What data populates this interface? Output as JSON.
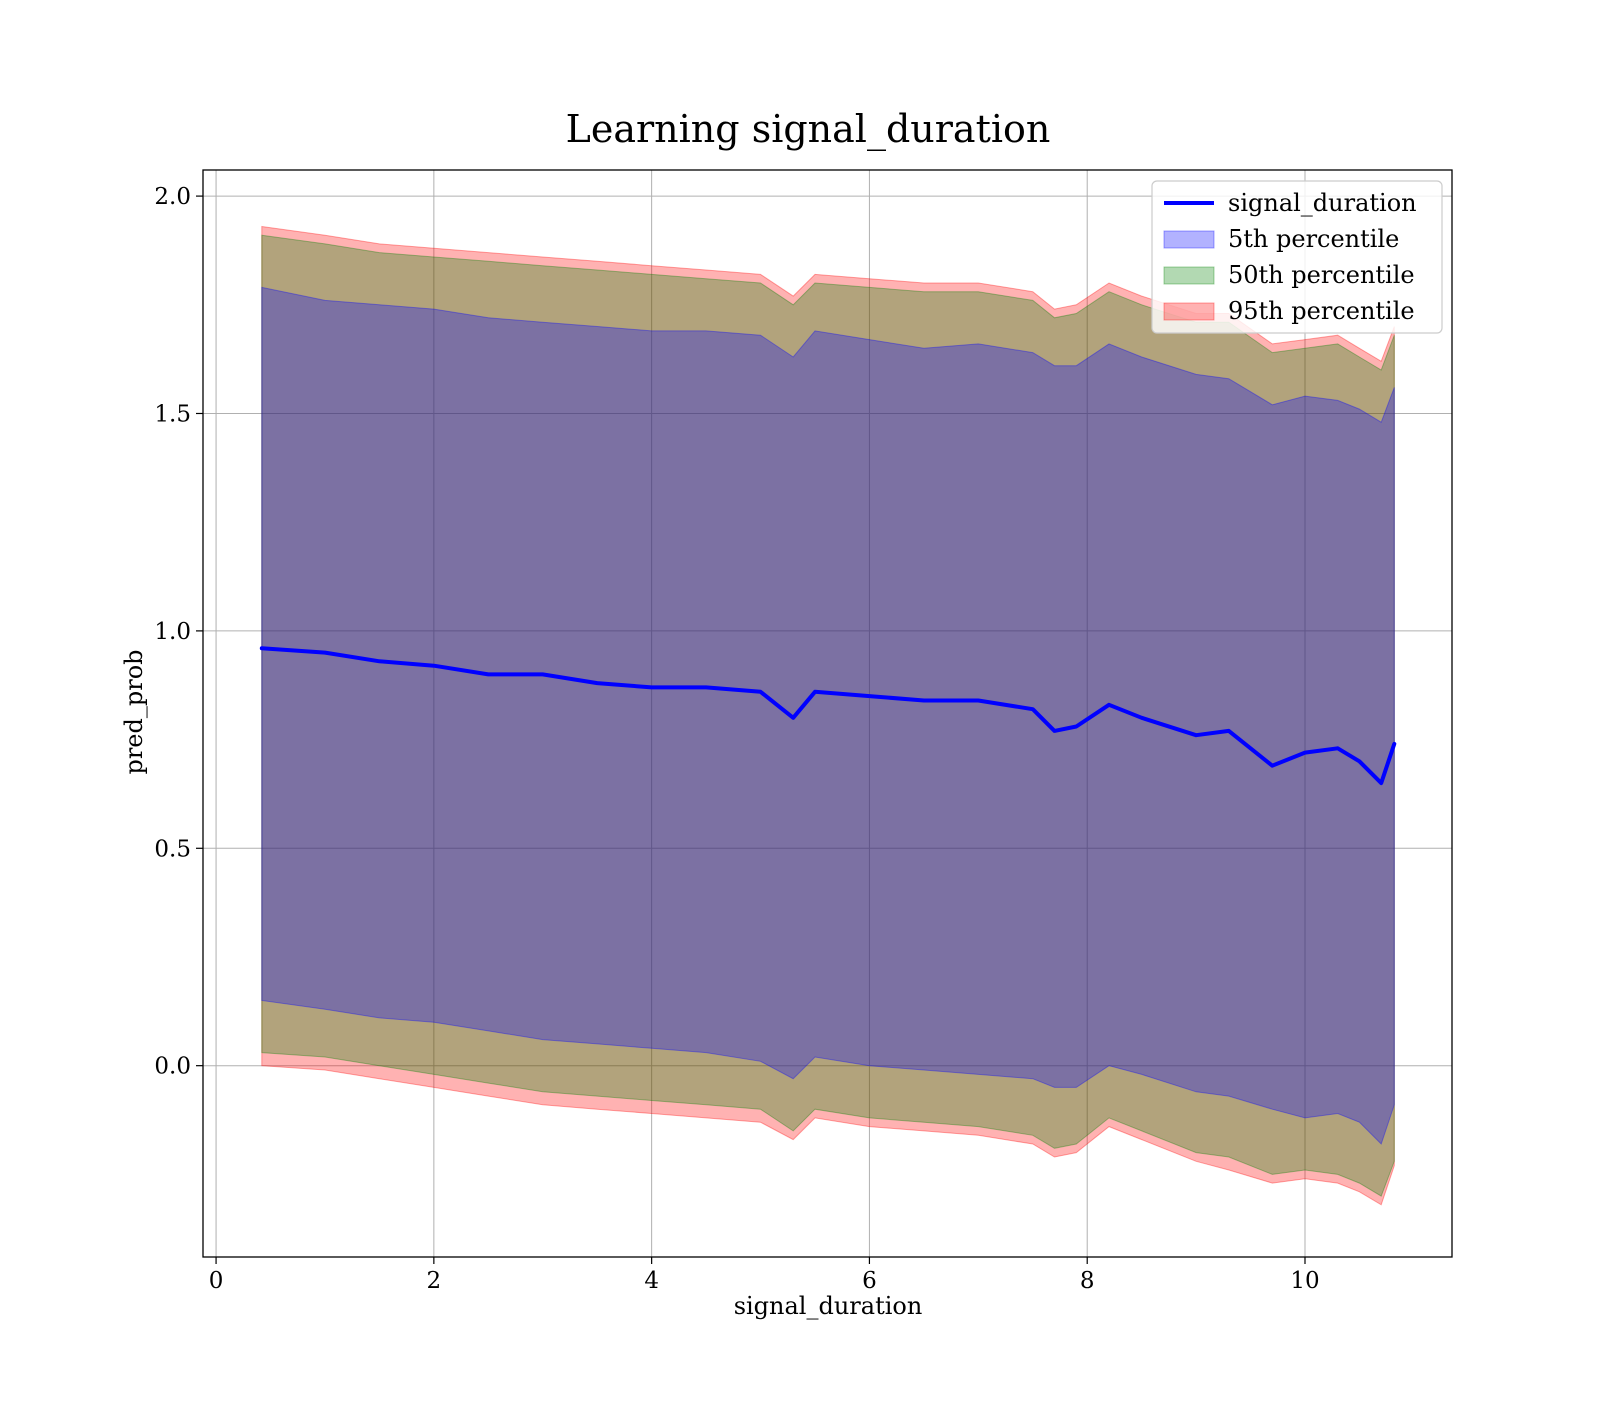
{
  "chart_data": {
    "type": "area",
    "title": "Learning signal_duration",
    "xlabel": "signal_duration",
    "ylabel": "pred_prob",
    "xlim": [
      -0.12,
      11.35
    ],
    "ylim": [
      -0.44,
      2.06
    ],
    "grid": true,
    "legend_position": "top-right",
    "x_ticks": [
      {
        "value": 0,
        "label": "0"
      },
      {
        "value": 2,
        "label": "2"
      },
      {
        "value": 4,
        "label": "4"
      },
      {
        "value": 6,
        "label": "6"
      },
      {
        "value": 8,
        "label": "8"
      },
      {
        "value": 10,
        "label": "10"
      }
    ],
    "y_ticks": [
      {
        "value": 0.0,
        "label": "0.0"
      },
      {
        "value": 0.5,
        "label": "0.5"
      },
      {
        "value": 1.0,
        "label": "1.0"
      },
      {
        "value": 1.5,
        "label": "1.5"
      },
      {
        "value": 2.0,
        "label": "2.0"
      }
    ],
    "x": [
      0.42,
      1.0,
      1.5,
      2.0,
      2.5,
      3.0,
      3.5,
      4.0,
      4.5,
      5.0,
      5.3,
      5.5,
      6.0,
      6.5,
      7.0,
      7.5,
      7.7,
      7.9,
      8.2,
      8.5,
      9.0,
      9.3,
      9.7,
      10.0,
      10.3,
      10.5,
      10.7,
      10.82
    ],
    "series": [
      {
        "name": "signal_duration",
        "kind": "line",
        "color": "#0000ff",
        "values": [
          0.96,
          0.95,
          0.93,
          0.92,
          0.9,
          0.9,
          0.88,
          0.87,
          0.87,
          0.86,
          0.8,
          0.86,
          0.85,
          0.84,
          0.84,
          0.82,
          0.77,
          0.78,
          0.83,
          0.8,
          0.76,
          0.77,
          0.69,
          0.72,
          0.73,
          0.7,
          0.65,
          0.74
        ]
      },
      {
        "name": "5th percentile",
        "kind": "band",
        "color": "#0000ff",
        "lower": [
          0.15,
          0.13,
          0.11,
          0.1,
          0.08,
          0.06,
          0.05,
          0.04,
          0.03,
          0.01,
          -0.03,
          0.02,
          0.0,
          -0.01,
          -0.02,
          -0.03,
          -0.05,
          -0.05,
          0.0,
          -0.02,
          -0.06,
          -0.07,
          -0.1,
          -0.12,
          -0.11,
          -0.13,
          -0.18,
          -0.09
        ],
        "upper": [
          1.79,
          1.76,
          1.75,
          1.74,
          1.72,
          1.71,
          1.7,
          1.69,
          1.69,
          1.68,
          1.63,
          1.69,
          1.67,
          1.65,
          1.66,
          1.64,
          1.61,
          1.61,
          1.66,
          1.63,
          1.59,
          1.58,
          1.52,
          1.54,
          1.53,
          1.51,
          1.48,
          1.56
        ]
      },
      {
        "name": "50th percentile",
        "kind": "band",
        "color": "#008000",
        "lower": [
          0.03,
          0.02,
          0.0,
          -0.02,
          -0.04,
          -0.06,
          -0.07,
          -0.08,
          -0.09,
          -0.1,
          -0.15,
          -0.1,
          -0.12,
          -0.13,
          -0.14,
          -0.16,
          -0.19,
          -0.18,
          -0.12,
          -0.15,
          -0.2,
          -0.21,
          -0.25,
          -0.24,
          -0.25,
          -0.27,
          -0.3,
          -0.22
        ],
        "upper": [
          1.91,
          1.89,
          1.87,
          1.86,
          1.85,
          1.84,
          1.83,
          1.82,
          1.81,
          1.8,
          1.75,
          1.8,
          1.79,
          1.78,
          1.78,
          1.76,
          1.72,
          1.73,
          1.78,
          1.75,
          1.71,
          1.71,
          1.64,
          1.65,
          1.66,
          1.63,
          1.6,
          1.68
        ]
      },
      {
        "name": "95th percentile",
        "kind": "band",
        "color": "#ff0000",
        "lower": [
          0.0,
          -0.01,
          -0.03,
          -0.05,
          -0.07,
          -0.09,
          -0.1,
          -0.11,
          -0.12,
          -0.13,
          -0.17,
          -0.12,
          -0.14,
          -0.15,
          -0.16,
          -0.18,
          -0.21,
          -0.2,
          -0.14,
          -0.17,
          -0.22,
          -0.24,
          -0.27,
          -0.26,
          -0.27,
          -0.29,
          -0.32,
          -0.23
        ],
        "upper": [
          1.93,
          1.91,
          1.89,
          1.88,
          1.87,
          1.86,
          1.85,
          1.84,
          1.83,
          1.82,
          1.77,
          1.82,
          1.81,
          1.8,
          1.8,
          1.78,
          1.74,
          1.75,
          1.8,
          1.77,
          1.73,
          1.73,
          1.66,
          1.67,
          1.68,
          1.65,
          1.62,
          1.7
        ]
      }
    ]
  }
}
